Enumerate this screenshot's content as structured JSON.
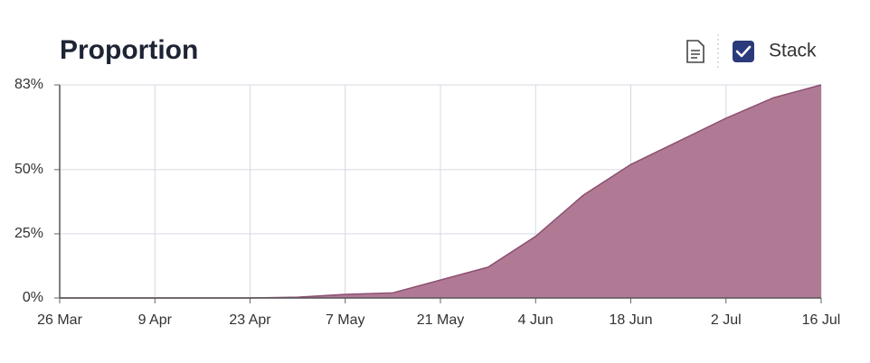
{
  "chart_data": {
    "type": "area",
    "title": "Proportion",
    "x": [
      "26 Mar",
      "2 Apr",
      "9 Apr",
      "16 Apr",
      "23 Apr",
      "30 Apr",
      "7 May",
      "14 May",
      "21 May",
      "28 May",
      "4 Jun",
      "11 Jun",
      "18 Jun",
      "25 Jun",
      "2 Jul",
      "9 Jul",
      "16 Jul"
    ],
    "values": [
      0,
      0,
      0,
      0,
      0,
      0.3,
      1.4,
      2,
      7,
      12,
      24,
      40,
      52,
      61,
      70,
      78,
      83
    ],
    "color": "#b07a95",
    "line_color": "#8d4f70",
    "xlim": [
      "26 Mar",
      "16 Jul"
    ],
    "xticks": [
      "26 Mar",
      "9 Apr",
      "23 Apr",
      "7 May",
      "21 May",
      "4 Jun",
      "18 Jun",
      "2 Jul",
      "16 Jul"
    ],
    "ylim": [
      0,
      83
    ],
    "yticks": [
      {
        "value": 0,
        "label": "0%"
      },
      {
        "value": 25,
        "label": "25%"
      },
      {
        "value": 50,
        "label": "50%"
      },
      {
        "value": 83,
        "label": "83%"
      }
    ],
    "grid": true
  },
  "controls": {
    "stack": {
      "label": "Stack",
      "checked": true
    }
  }
}
